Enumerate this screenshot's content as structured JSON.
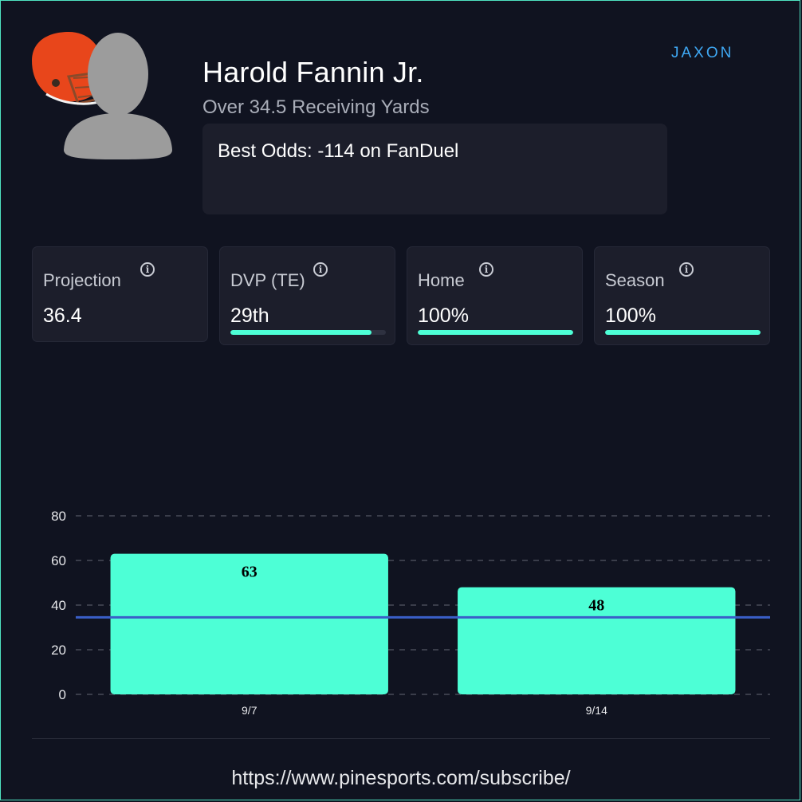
{
  "player": {
    "name": "Harold Fannin Jr.",
    "prop": "Over 34.5 Receiving Yards",
    "best_odds": "Best Odds: -114 on FanDuel"
  },
  "brand": {
    "logo_text": "JAXON"
  },
  "stats": [
    {
      "label": "Projection",
      "value": "36.4"
    },
    {
      "label": "DVP (TE)",
      "value": "29th",
      "bar_fraction": 0.91
    },
    {
      "label": "Home",
      "value": "100%",
      "bar_fraction": 1.0
    },
    {
      "label": "Season",
      "value": "100%",
      "bar_fraction": 1.0
    }
  ],
  "colors": {
    "accent": "#4dffd6",
    "line": "#3a5fc8",
    "background": "#101320",
    "card": "#1c1e2b",
    "helmet": "#e8461b"
  },
  "chart_data": {
    "type": "bar",
    "categories": [
      "9/7",
      "9/14"
    ],
    "values": [
      63,
      48
    ],
    "reference_line": 34.5,
    "ylim": [
      0,
      80
    ],
    "yticks": [
      0,
      20,
      40,
      60,
      80
    ],
    "grid": true,
    "title": "",
    "xlabel": "",
    "ylabel": ""
  },
  "footer": {
    "url": "https://www.pinesports.com/subscribe/"
  }
}
